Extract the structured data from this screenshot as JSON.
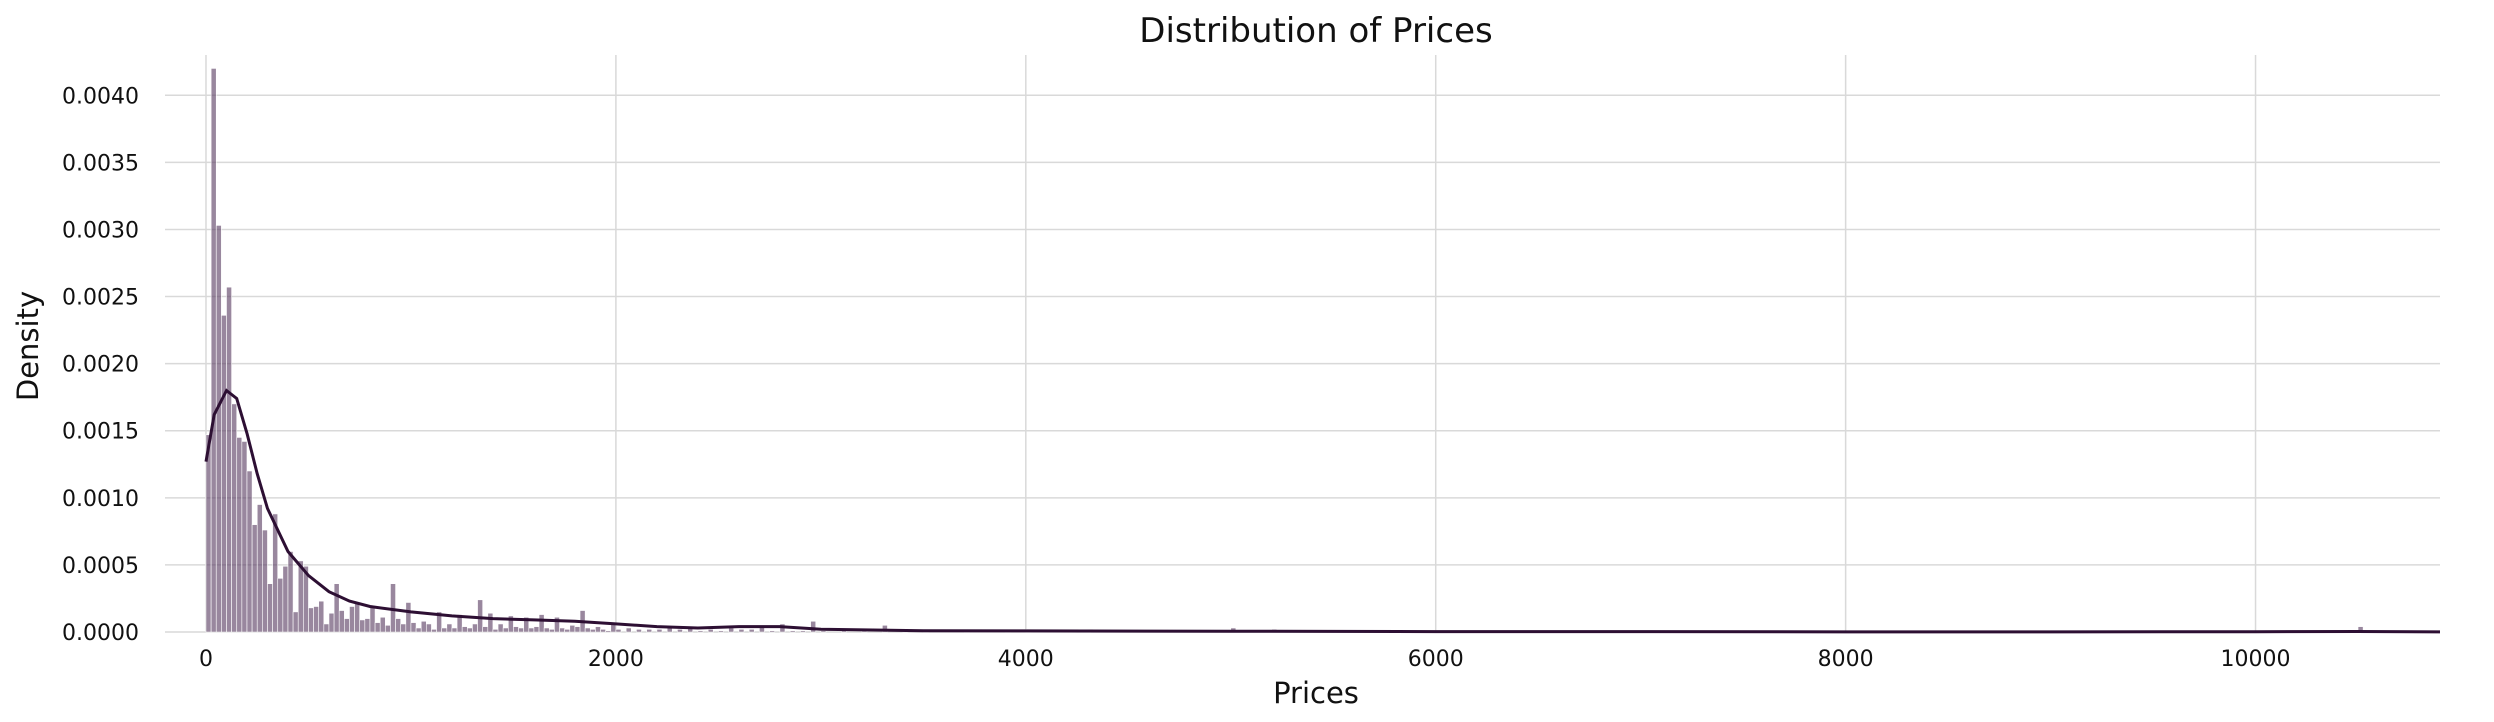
{
  "chart_data": {
    "type": "bar",
    "title": "Distribution of Prices",
    "xlabel": "Prices",
    "ylabel": "Density",
    "xlim": [
      -200,
      10900
    ],
    "ylim": [
      0,
      0.0043
    ],
    "xticks": [
      0,
      2000,
      4000,
      6000,
      8000,
      10000
    ],
    "xtick_labels": [
      "0",
      "2000",
      "4000",
      "6000",
      "8000",
      "10000"
    ],
    "yticks": [
      0.0,
      0.0005,
      0.001,
      0.0015,
      0.002,
      0.0025,
      0.003,
      0.0035,
      0.004
    ],
    "ytick_labels": [
      "0.0000",
      "0.0005",
      "0.0010",
      "0.0015",
      "0.0020",
      "0.0025",
      "0.0030",
      "0.0035",
      "0.0040"
    ],
    "grid": true,
    "legend": "none",
    "colors": {
      "bars": "#5a3d62",
      "kde": "#2d0f33",
      "grid": "#d9d9d9"
    },
    "bin_width": 25,
    "histogram": [
      [
        0,
        0.00147
      ],
      [
        25,
        0.0042
      ],
      [
        50,
        0.00303
      ],
      [
        75,
        0.00236
      ],
      [
        100,
        0.00257
      ],
      [
        125,
        0.0017
      ],
      [
        150,
        0.00145
      ],
      [
        175,
        0.00142
      ],
      [
        200,
        0.0012
      ],
      [
        225,
        0.0008
      ],
      [
        250,
        0.00095
      ],
      [
        275,
        0.00076
      ],
      [
        300,
        0.00036
      ],
      [
        325,
        0.00088
      ],
      [
        350,
        0.0004
      ],
      [
        375,
        0.00049
      ],
      [
        400,
        0.0006
      ],
      [
        425,
        0.00015
      ],
      [
        450,
        0.00053
      ],
      [
        475,
        0.00049
      ],
      [
        500,
        0.00018
      ],
      [
        525,
        0.00019
      ],
      [
        550,
        0.00023
      ],
      [
        575,
        6e-05
      ],
      [
        600,
        0.00014
      ],
      [
        625,
        0.00036
      ],
      [
        650,
        0.00016
      ],
      [
        675,
        0.0001
      ],
      [
        700,
        0.00019
      ],
      [
        725,
        0.00022
      ],
      [
        750,
        9e-05
      ],
      [
        775,
        0.0001
      ],
      [
        800,
        0.00019
      ],
      [
        825,
        7e-05
      ],
      [
        850,
        0.00011
      ],
      [
        875,
        5e-05
      ],
      [
        900,
        0.00036
      ],
      [
        925,
        0.0001
      ],
      [
        950,
        6e-05
      ],
      [
        975,
        0.00022
      ],
      [
        1000,
        7e-05
      ],
      [
        1025,
        3e-05
      ],
      [
        1050,
        8e-05
      ],
      [
        1075,
        6e-05
      ],
      [
        1100,
        2e-05
      ],
      [
        1125,
        0.00015
      ],
      [
        1150,
        3e-05
      ],
      [
        1175,
        6e-05
      ],
      [
        1200,
        3e-05
      ],
      [
        1225,
        0.00013
      ],
      [
        1250,
        4e-05
      ],
      [
        1275,
        3e-05
      ],
      [
        1300,
        6e-05
      ],
      [
        1325,
        0.00024
      ],
      [
        1350,
        4e-05
      ],
      [
        1375,
        0.00014
      ],
      [
        1400,
        2e-05
      ],
      [
        1425,
        6e-05
      ],
      [
        1450,
        3e-05
      ],
      [
        1475,
        0.00012
      ],
      [
        1500,
        4e-05
      ],
      [
        1525,
        3e-05
      ],
      [
        1550,
        0.00011
      ],
      [
        1575,
        3e-05
      ],
      [
        1600,
        4e-05
      ],
      [
        1625,
        0.00013
      ],
      [
        1650,
        3e-05
      ],
      [
        1675,
        2e-05
      ],
      [
        1700,
        0.00011
      ],
      [
        1725,
        3e-05
      ],
      [
        1750,
        2e-05
      ],
      [
        1775,
        5e-05
      ],
      [
        1800,
        4e-05
      ],
      [
        1825,
        0.00016
      ],
      [
        1850,
        3e-05
      ],
      [
        1875,
        2e-05
      ],
      [
        1900,
        4e-05
      ],
      [
        1925,
        2e-05
      ],
      [
        1950,
        1e-05
      ],
      [
        1975,
        7e-05
      ],
      [
        2000,
        2e-05
      ],
      [
        2050,
        3e-05
      ],
      [
        2100,
        2e-05
      ],
      [
        2150,
        2e-05
      ],
      [
        2200,
        2e-05
      ],
      [
        2250,
        4e-05
      ],
      [
        2300,
        2e-05
      ],
      [
        2350,
        4e-05
      ],
      [
        2400,
        1e-05
      ],
      [
        2450,
        2e-05
      ],
      [
        2500,
        1e-05
      ],
      [
        2550,
        3e-05
      ],
      [
        2600,
        2e-05
      ],
      [
        2650,
        2e-05
      ],
      [
        2700,
        5e-05
      ],
      [
        2750,
        1e-05
      ],
      [
        2800,
        6e-05
      ],
      [
        2850,
        1e-05
      ],
      [
        2900,
        1e-05
      ],
      [
        2950,
        8e-05
      ],
      [
        3000,
        1e-05
      ],
      [
        3100,
        1e-05
      ],
      [
        3200,
        1e-05
      ],
      [
        3300,
        5e-05
      ],
      [
        3400,
        1e-05
      ],
      [
        3500,
        2e-05
      ],
      [
        3700,
        1e-05
      ],
      [
        3900,
        1e-05
      ],
      [
        4000,
        2e-05
      ],
      [
        4200,
        1e-05
      ],
      [
        4300,
        2e-05
      ],
      [
        4500,
        1e-05
      ],
      [
        4800,
        1e-05
      ],
      [
        5000,
        3e-05
      ],
      [
        5200,
        2e-05
      ],
      [
        5500,
        1e-05
      ],
      [
        6000,
        1e-05
      ],
      [
        6800,
        1e-05
      ],
      [
        7200,
        1e-05
      ],
      [
        10500,
        4e-05
      ]
    ],
    "kde": [
      [
        0,
        0.00127
      ],
      [
        40,
        0.00162
      ],
      [
        100,
        0.0018
      ],
      [
        150,
        0.00174
      ],
      [
        200,
        0.00148
      ],
      [
        250,
        0.00118
      ],
      [
        300,
        0.00092
      ],
      [
        400,
        0.0006
      ],
      [
        500,
        0.00042
      ],
      [
        600,
        0.0003
      ],
      [
        700,
        0.00023
      ],
      [
        800,
        0.00019
      ],
      [
        1000,
        0.00015
      ],
      [
        1200,
        0.00012
      ],
      [
        1400,
        0.0001
      ],
      [
        1600,
        9e-05
      ],
      [
        1800,
        8e-05
      ],
      [
        2000,
        6e-05
      ],
      [
        2200,
        4e-05
      ],
      [
        2400,
        3e-05
      ],
      [
        2600,
        4e-05
      ],
      [
        2800,
        4e-05
      ],
      [
        3000,
        2e-05
      ],
      [
        3500,
        1e-05
      ],
      [
        4000,
        8e-06
      ],
      [
        5000,
        6e-06
      ],
      [
        6000,
        3e-06
      ],
      [
        7000,
        3e-06
      ],
      [
        8000,
        1e-06
      ],
      [
        9000,
        1e-06
      ],
      [
        10000,
        2e-06
      ],
      [
        10500,
        4e-06
      ],
      [
        10900,
        1e-06
      ]
    ]
  }
}
